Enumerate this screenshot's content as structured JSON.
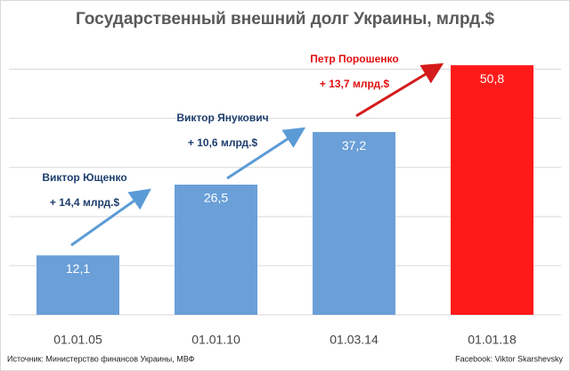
{
  "chart_data": {
    "type": "bar",
    "title": "Государственный внешний долг Украины, млрд.$",
    "categories": [
      "01.01.05",
      "01.01.10",
      "01.03.14",
      "01.01.18"
    ],
    "values": [
      12.1,
      26.5,
      37.2,
      50.8
    ],
    "value_labels": [
      "12,1",
      "26,5",
      "37,2",
      "50,8"
    ],
    "colors": [
      "#6a9fd8",
      "#6a9fd8",
      "#6a9fd8",
      "#ff1a1a"
    ],
    "ylim": [
      0,
      55
    ],
    "yticks": [
      0,
      10,
      20,
      30,
      40,
      50
    ],
    "grid": true,
    "annotations": [
      {
        "name": "Виктор Ющенко",
        "change": "+ 14,4 млрд.$",
        "color": "#1f3f6e",
        "arrow_color": "#5b9bd5"
      },
      {
        "name": "Виктор Янукович",
        "change": "+ 10,6 млрд.$",
        "color": "#1f3f6e",
        "arrow_color": "#5b9bd5"
      },
      {
        "name": "Петр Порошенко",
        "change": "+ 13,7 млрд.$",
        "color": "#e01010",
        "arrow_color": "#d41a1a"
      }
    ],
    "source": "Источник: Министерство финансов Украины, МВФ",
    "credit": "Facebook: Viktor Skarshevsky"
  }
}
